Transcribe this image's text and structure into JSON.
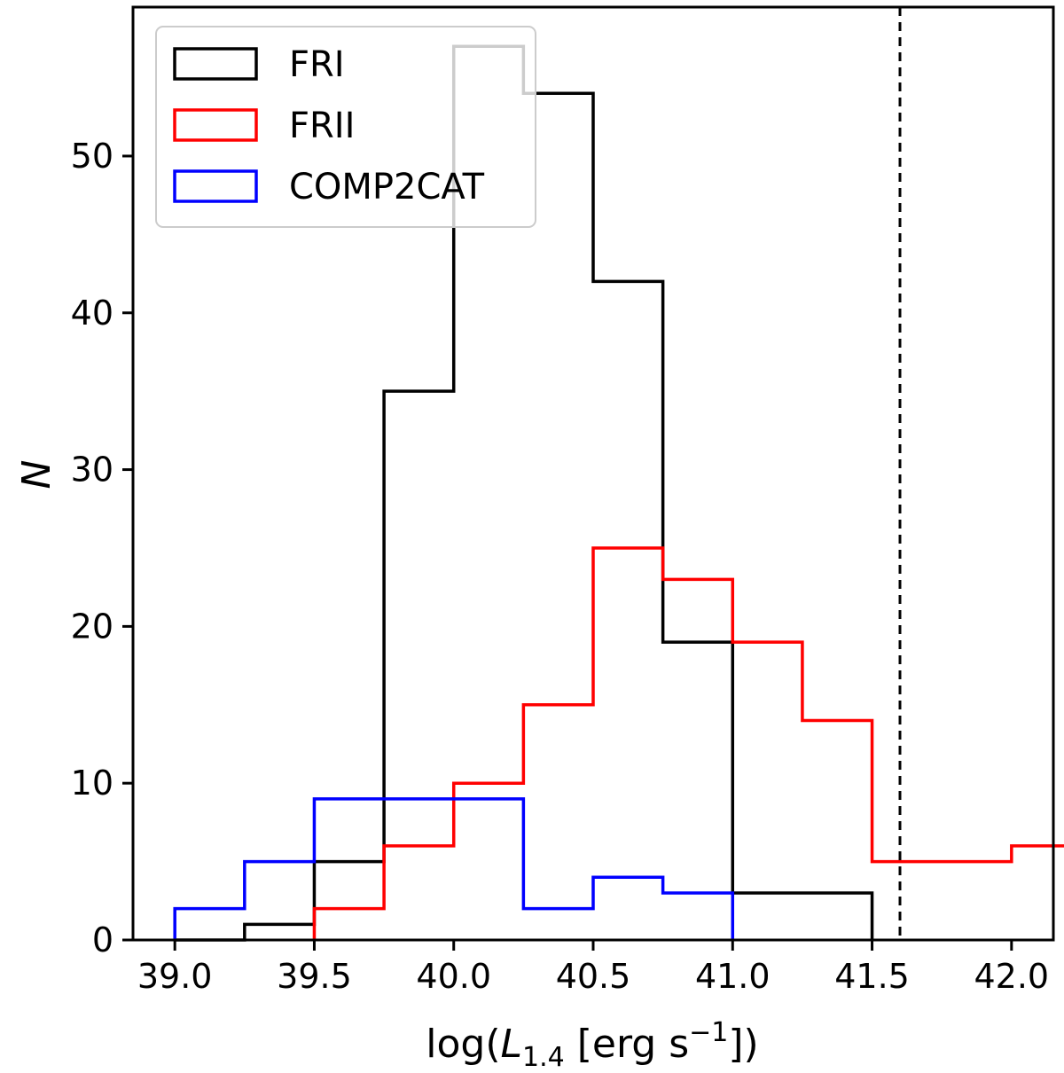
{
  "chart_data": {
    "type": "histogram-step",
    "title": "",
    "xlabel": {
      "prefix": "log(",
      "var": "L",
      "sub": "1.4",
      "unit_open": " [erg s",
      "sup": "−1",
      "unit_close": "])"
    },
    "ylabel": "N",
    "xlim": [
      38.85,
      42.15
    ],
    "ylim": [
      0,
      59.5
    ],
    "xticks": [
      39.0,
      39.5,
      40.0,
      40.5,
      41.0,
      41.5,
      42.0
    ],
    "xtick_labels": [
      "39.0",
      "39.5",
      "40.0",
      "40.5",
      "41.0",
      "41.5",
      "42.0"
    ],
    "yticks": [
      0,
      10,
      20,
      30,
      40,
      50
    ],
    "ytick_labels": [
      "0",
      "10",
      "20",
      "30",
      "40",
      "50"
    ],
    "bin_width": 0.25,
    "series": [
      {
        "name": "FRI",
        "color": "#000000",
        "bin_start": 39.0,
        "counts": [
          0,
          1,
          5,
          35,
          57,
          54,
          42,
          19,
          3,
          3
        ]
      },
      {
        "name": "FRII",
        "color": "#ff0000",
        "bin_start": 39.5,
        "counts": [
          2,
          6,
          10,
          15,
          25,
          23,
          19,
          14,
          5,
          5,
          6
        ]
      },
      {
        "name": "COMP2CAT",
        "color": "#0000ff",
        "bin_start": 39.0,
        "counts": [
          2,
          5,
          9,
          9,
          9,
          2,
          4,
          3
        ]
      }
    ],
    "vline": {
      "x": 41.6,
      "style": "dashed",
      "color": "#000000"
    },
    "legend": {
      "position": "top-left",
      "entries": [
        "FRI",
        "FRII",
        "COMP2CAT"
      ]
    }
  }
}
